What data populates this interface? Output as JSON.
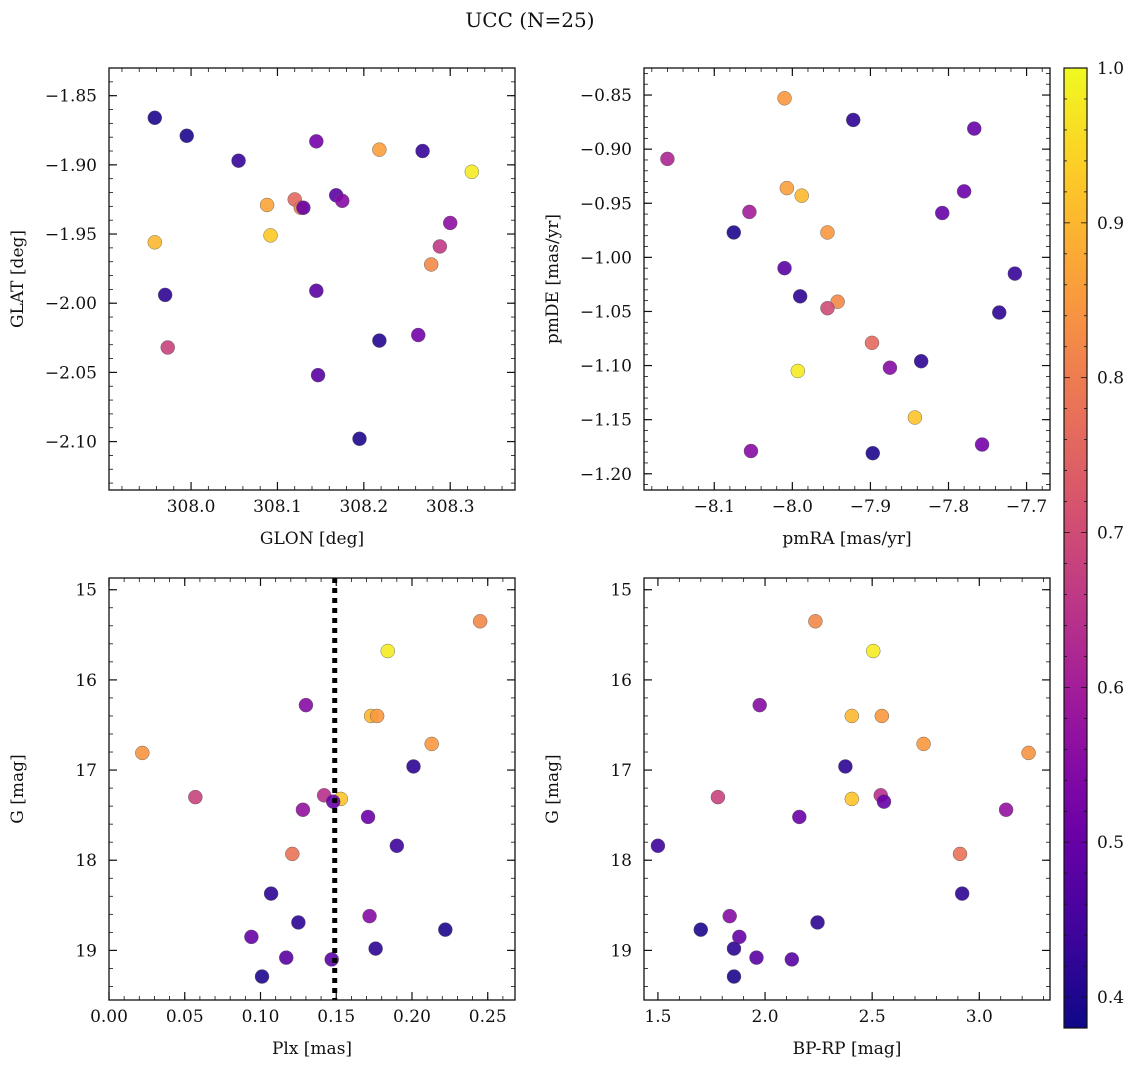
{
  "title": "UCC (N=25)",
  "colormap": "plasma",
  "colormap_stops": [
    "#0d0887",
    "#46039f",
    "#7201a8",
    "#9c179e",
    "#bd3786",
    "#d8576b",
    "#ed7953",
    "#fb9f3a",
    "#fdca26",
    "#f0f921"
  ],
  "colorbar": {
    "range": [
      0.38,
      1.0
    ],
    "ticks": [
      "0.4",
      "0.5",
      "0.6",
      "0.7",
      "0.8",
      "0.9",
      "1.0"
    ]
  },
  "chart_data": [
    {
      "type": "scatter",
      "xlabel": "GLON [deg]",
      "ylabel": "GLAT [deg]",
      "xlim": [
        307.905,
        308.375
      ],
      "ylim": [
        -2.135,
        -1.83
      ],
      "xticks": [
        "308.0",
        "308.1",
        "308.2",
        "308.3"
      ],
      "yticks": [
        "−1.85",
        "−1.90",
        "−1.95",
        "−2.00",
        "−2.05",
        "−2.10"
      ],
      "points": [
        {
          "x": 307.958,
          "y": -1.866,
          "c": 0.4
        },
        {
          "x": 307.995,
          "y": -1.879,
          "c": 0.4
        },
        {
          "x": 308.055,
          "y": -1.897,
          "c": 0.43
        },
        {
          "x": 308.145,
          "y": -1.883,
          "c": 0.52
        },
        {
          "x": 308.218,
          "y": -1.889,
          "c": 0.86
        },
        {
          "x": 308.268,
          "y": -1.89,
          "c": 0.43
        },
        {
          "x": 308.325,
          "y": -1.905,
          "c": 0.98
        },
        {
          "x": 308.088,
          "y": -1.929,
          "c": 0.87
        },
        {
          "x": 308.12,
          "y": -1.925,
          "c": 0.76
        },
        {
          "x": 308.127,
          "y": -1.931,
          "c": 0.8
        },
        {
          "x": 308.13,
          "y": -1.931,
          "c": 0.5
        },
        {
          "x": 308.168,
          "y": -1.922,
          "c": 0.48
        },
        {
          "x": 308.175,
          "y": -1.926,
          "c": 0.55
        },
        {
          "x": 307.958,
          "y": -1.956,
          "c": 0.9
        },
        {
          "x": 308.092,
          "y": -1.951,
          "c": 0.93
        },
        {
          "x": 308.3,
          "y": -1.942,
          "c": 0.56
        },
        {
          "x": 308.288,
          "y": -1.959,
          "c": 0.66
        },
        {
          "x": 308.278,
          "y": -1.972,
          "c": 0.82
        },
        {
          "x": 307.97,
          "y": -1.994,
          "c": 0.42
        },
        {
          "x": 308.145,
          "y": -1.991,
          "c": 0.48
        },
        {
          "x": 307.973,
          "y": -2.032,
          "c": 0.68
        },
        {
          "x": 308.218,
          "y": -2.027,
          "c": 0.41
        },
        {
          "x": 308.263,
          "y": -2.023,
          "c": 0.52
        },
        {
          "x": 308.147,
          "y": -2.052,
          "c": 0.48
        },
        {
          "x": 308.195,
          "y": -2.098,
          "c": 0.4
        }
      ]
    },
    {
      "type": "scatter",
      "xlabel": "pmRA [mas/yr]",
      "ylabel": "pmDE [mas/yr]",
      "xlim": [
        -8.19,
        -7.67
      ],
      "ylim": [
        -1.215,
        -0.825
      ],
      "xticks": [
        "−8.1",
        "−8.0",
        "−7.9",
        "−7.8",
        "−7.7"
      ],
      "yticks": [
        "−0.85",
        "−0.90",
        "−0.95",
        "−1.00",
        "−1.05",
        "−1.10",
        "−1.15",
        "−1.20"
      ],
      "points": [
        {
          "x": -8.01,
          "y": -0.853,
          "c": 0.85
        },
        {
          "x": -7.922,
          "y": -0.873,
          "c": 0.42
        },
        {
          "x": -7.767,
          "y": -0.881,
          "c": 0.5
        },
        {
          "x": -8.16,
          "y": -0.909,
          "c": 0.62
        },
        {
          "x": -8.007,
          "y": -0.936,
          "c": 0.86
        },
        {
          "x": -7.988,
          "y": -0.943,
          "c": 0.9
        },
        {
          "x": -7.78,
          "y": -0.939,
          "c": 0.51
        },
        {
          "x": -8.055,
          "y": -0.958,
          "c": 0.6
        },
        {
          "x": -7.808,
          "y": -0.959,
          "c": 0.5
        },
        {
          "x": -8.075,
          "y": -0.977,
          "c": 0.4
        },
        {
          "x": -7.955,
          "y": -0.977,
          "c": 0.85
        },
        {
          "x": -8.01,
          "y": -1.01,
          "c": 0.48
        },
        {
          "x": -7.715,
          "y": -1.015,
          "c": 0.43
        },
        {
          "x": -7.99,
          "y": -1.036,
          "c": 0.42
        },
        {
          "x": -7.942,
          "y": -1.041,
          "c": 0.82
        },
        {
          "x": -7.955,
          "y": -1.047,
          "c": 0.7
        },
        {
          "x": -7.735,
          "y": -1.051,
          "c": 0.42
        },
        {
          "x": -7.898,
          "y": -1.079,
          "c": 0.76
        },
        {
          "x": -7.835,
          "y": -1.096,
          "c": 0.42
        },
        {
          "x": -7.875,
          "y": -1.102,
          "c": 0.55
        },
        {
          "x": -7.993,
          "y": -1.105,
          "c": 0.98
        },
        {
          "x": -7.843,
          "y": -1.148,
          "c": 0.92
        },
        {
          "x": -7.757,
          "y": -1.173,
          "c": 0.52
        },
        {
          "x": -8.053,
          "y": -1.179,
          "c": 0.55
        },
        {
          "x": -7.897,
          "y": -1.181,
          "c": 0.4
        }
      ]
    },
    {
      "type": "scatter",
      "xlabel": "Plx [mas]",
      "ylabel": "G [mag]",
      "xlim": [
        0.0,
        0.268
      ],
      "ylim": [
        19.55,
        14.87
      ],
      "xticks": [
        "0.00",
        "0.05",
        "0.10",
        "0.15",
        "0.20",
        "0.25"
      ],
      "yticks": [
        "15",
        "16",
        "17",
        "18",
        "19"
      ],
      "vline": {
        "x": 0.149,
        "style": "dotted"
      },
      "points": [
        {
          "x": 0.245,
          "y": 15.35,
          "c": 0.82
        },
        {
          "x": 0.184,
          "y": 15.68,
          "c": 0.98
        },
        {
          "x": 0.13,
          "y": 16.28,
          "c": 0.55
        },
        {
          "x": 0.173,
          "y": 16.4,
          "c": 0.9
        },
        {
          "x": 0.177,
          "y": 16.4,
          "c": 0.85
        },
        {
          "x": 0.213,
          "y": 16.71,
          "c": 0.85
        },
        {
          "x": 0.022,
          "y": 16.81,
          "c": 0.84
        },
        {
          "x": 0.201,
          "y": 16.96,
          "c": 0.42
        },
        {
          "x": 0.057,
          "y": 17.3,
          "c": 0.68
        },
        {
          "x": 0.142,
          "y": 17.28,
          "c": 0.64
        },
        {
          "x": 0.153,
          "y": 17.32,
          "c": 0.92
        },
        {
          "x": 0.148,
          "y": 17.35,
          "c": 0.5
        },
        {
          "x": 0.128,
          "y": 17.44,
          "c": 0.57
        },
        {
          "x": 0.171,
          "y": 17.52,
          "c": 0.51
        },
        {
          "x": 0.19,
          "y": 17.84,
          "c": 0.44
        },
        {
          "x": 0.121,
          "y": 17.93,
          "c": 0.78
        },
        {
          "x": 0.107,
          "y": 18.37,
          "c": 0.42
        },
        {
          "x": 0.172,
          "y": 18.62,
          "c": 0.55
        },
        {
          "x": 0.125,
          "y": 18.69,
          "c": 0.42
        },
        {
          "x": 0.222,
          "y": 18.77,
          "c": 0.4
        },
        {
          "x": 0.094,
          "y": 18.85,
          "c": 0.5
        },
        {
          "x": 0.176,
          "y": 18.98,
          "c": 0.42
        },
        {
          "x": 0.117,
          "y": 19.08,
          "c": 0.48
        },
        {
          "x": 0.147,
          "y": 19.1,
          "c": 0.48
        },
        {
          "x": 0.101,
          "y": 19.29,
          "c": 0.4
        }
      ]
    },
    {
      "type": "scatter",
      "xlabel": "BP-RP [mag]",
      "ylabel": "G [mag]",
      "xlim": [
        1.435,
        3.33
      ],
      "ylim": [
        19.55,
        14.87
      ],
      "xticks": [
        "1.5",
        "2.0",
        "2.5",
        "3.0"
      ],
      "yticks": [
        "15",
        "16",
        "17",
        "18",
        "19"
      ],
      "points": [
        {
          "x": 2.235,
          "y": 15.35,
          "c": 0.82
        },
        {
          "x": 2.505,
          "y": 15.68,
          "c": 0.98
        },
        {
          "x": 1.975,
          "y": 16.28,
          "c": 0.55
        },
        {
          "x": 2.405,
          "y": 16.4,
          "c": 0.9
        },
        {
          "x": 2.545,
          "y": 16.4,
          "c": 0.85
        },
        {
          "x": 2.74,
          "y": 16.71,
          "c": 0.85
        },
        {
          "x": 3.23,
          "y": 16.81,
          "c": 0.84
        },
        {
          "x": 2.375,
          "y": 16.96,
          "c": 0.42
        },
        {
          "x": 1.78,
          "y": 17.3,
          "c": 0.68
        },
        {
          "x": 2.54,
          "y": 17.28,
          "c": 0.64
        },
        {
          "x": 2.405,
          "y": 17.32,
          "c": 0.92
        },
        {
          "x": 2.555,
          "y": 17.35,
          "c": 0.5
        },
        {
          "x": 3.125,
          "y": 17.44,
          "c": 0.57
        },
        {
          "x": 2.16,
          "y": 17.52,
          "c": 0.51
        },
        {
          "x": 1.5,
          "y": 17.84,
          "c": 0.44
        },
        {
          "x": 2.91,
          "y": 17.93,
          "c": 0.78
        },
        {
          "x": 2.92,
          "y": 18.37,
          "c": 0.42
        },
        {
          "x": 1.835,
          "y": 18.62,
          "c": 0.55
        },
        {
          "x": 2.245,
          "y": 18.69,
          "c": 0.42
        },
        {
          "x": 1.7,
          "y": 18.77,
          "c": 0.4
        },
        {
          "x": 1.88,
          "y": 18.85,
          "c": 0.5
        },
        {
          "x": 1.855,
          "y": 18.98,
          "c": 0.42
        },
        {
          "x": 1.96,
          "y": 19.08,
          "c": 0.48
        },
        {
          "x": 2.125,
          "y": 19.1,
          "c": 0.48
        },
        {
          "x": 1.855,
          "y": 19.29,
          "c": 0.4
        }
      ]
    }
  ]
}
